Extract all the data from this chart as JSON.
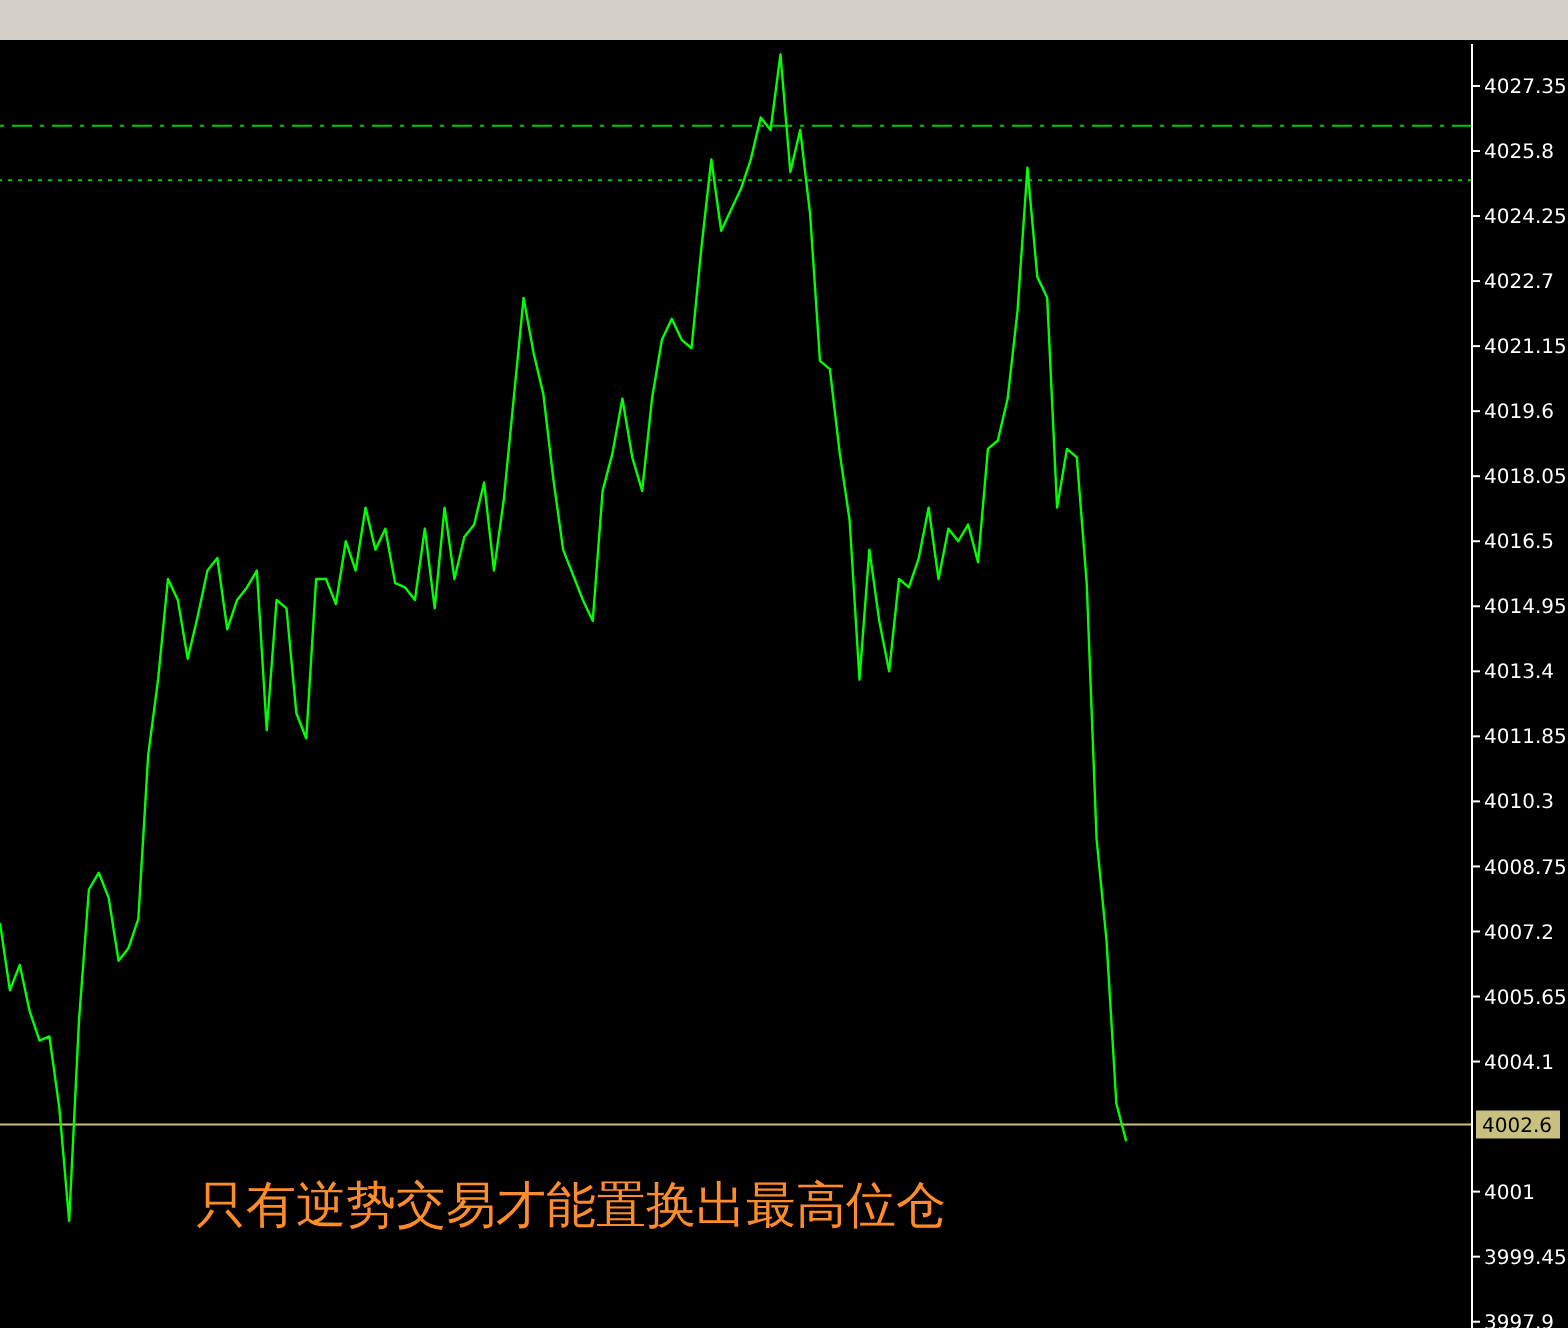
{
  "chart_data": {
    "type": "line",
    "categories": [
      null,
      null,
      null,
      null,
      null,
      null,
      null,
      null,
      null,
      null,
      null,
      null,
      null,
      null,
      null,
      null,
      null,
      null,
      null,
      null,
      null,
      null,
      null,
      null,
      null,
      null,
      null,
      null,
      null,
      null,
      null,
      null,
      null,
      null,
      null,
      null,
      null,
      null,
      null,
      null,
      null,
      null,
      null,
      null,
      null,
      null,
      null,
      null,
      null,
      null,
      null,
      null,
      null,
      null,
      null,
      null,
      null,
      null,
      null,
      null,
      null,
      null,
      null,
      null,
      null,
      null,
      null,
      null,
      null,
      null,
      null,
      null,
      null,
      null,
      null,
      null,
      null,
      null,
      null,
      null,
      null,
      null,
      null,
      null,
      null,
      null,
      null,
      null,
      null,
      null,
      null,
      null,
      null,
      null,
      null,
      null,
      null,
      null,
      null,
      null,
      null,
      null,
      null,
      null,
      null,
      null,
      null,
      null,
      null,
      null,
      null,
      null,
      null,
      null,
      null,
      null,
      null,
      null,
      null,
      null,
      null,
      null,
      null,
      null,
      null,
      null,
      null,
      null,
      null,
      null,
      null,
      null,
      null,
      null,
      null,
      null,
      null,
      null,
      null,
      null,
      null,
      null,
      null,
      null,
      null,
      null,
      null,
      null,
      null,
      null
    ],
    "series": [
      {
        "color": "#00ff00",
        "values": [
          4007.4,
          4005.8,
          4006.4,
          4005.3,
          4004.6,
          4004.7,
          4003.0,
          4000.3,
          4005.1,
          4008.2,
          4008.6,
          4008.0,
          4006.5,
          4006.8,
          4007.5,
          4011.4,
          4013.2,
          4015.6,
          4015.1,
          4013.7,
          4014.7,
          4015.8,
          4016.1,
          4014.4,
          4015.1,
          4015.4,
          4015.8,
          4012.0,
          4015.1,
          4014.9,
          4012.4,
          4011.8,
          4015.6,
          4015.6,
          4015.0,
          4016.5,
          4015.8,
          4017.3,
          4016.3,
          4016.8,
          4015.5,
          4015.4,
          4015.1,
          4016.8,
          4014.9,
          4017.3,
          4015.6,
          4016.6,
          4016.9,
          4017.9,
          4015.8,
          4017.5,
          4019.9,
          4022.3,
          4021.0,
          4020.0,
          4018.0,
          4016.3,
          4015.7,
          4015.1,
          4014.6,
          4017.7,
          4018.6,
          4019.9,
          4018.5,
          4017.7,
          4019.9,
          4021.3,
          4021.8,
          4021.3,
          4021.1,
          4023.5,
          4025.6,
          4023.9,
          4024.4,
          4024.9,
          4025.6,
          4026.6,
          4026.3,
          4028.1,
          4025.3,
          4026.3,
          4024.3,
          4020.8,
          4020.6,
          4018.6,
          4017.0,
          4013.2,
          4016.3,
          4014.6,
          4013.4,
          4015.6,
          4015.4,
          4016.1,
          4017.3,
          4015.6,
          4016.8,
          4016.5,
          4016.9,
          4016.0,
          4018.7,
          4018.9,
          4019.9,
          4022.0,
          4025.4,
          4022.8,
          4022.3,
          4017.3,
          4018.7,
          4018.5,
          4015.5,
          4009.4,
          4007.0,
          4003.1,
          4002.2,
          null,
          null,
          null,
          null,
          null,
          null,
          null,
          null,
          null,
          null,
          null,
          null,
          null,
          null,
          null,
          null,
          null,
          null,
          null,
          null,
          null,
          null,
          null,
          null,
          null,
          null,
          null,
          null,
          null,
          null,
          null,
          null,
          null,
          null,
          null
        ]
      }
    ],
    "ylim": [
      3997.75,
      4028.35
    ],
    "yticks": [
      4027.35,
      4025.8,
      4024.25,
      4022.7,
      4021.15,
      4019.6,
      4018.05,
      4016.5,
      4014.95,
      4013.4,
      4011.85,
      4010.3,
      4008.75,
      4007.2,
      4005.65,
      4004.1,
      4001.0,
      3999.45,
      3997.9
    ],
    "tick_labels": "y",
    "marker": "none",
    "line_style": "solid",
    "ref_lines": [
      {
        "axis": "y",
        "value": 4026.4,
        "color": "#00c800",
        "line_style": "dashdot"
      },
      {
        "axis": "y",
        "value": 4025.1,
        "color": "#00c800",
        "line_style": "dotted"
      },
      {
        "axis": "y",
        "value": 4002.6,
        "label": "4002.6",
        "color": "#c8c080",
        "line_style": "solid"
      }
    ],
    "annotations": [
      "只有逆势交易才能置换出最高位仓"
    ]
  }
}
